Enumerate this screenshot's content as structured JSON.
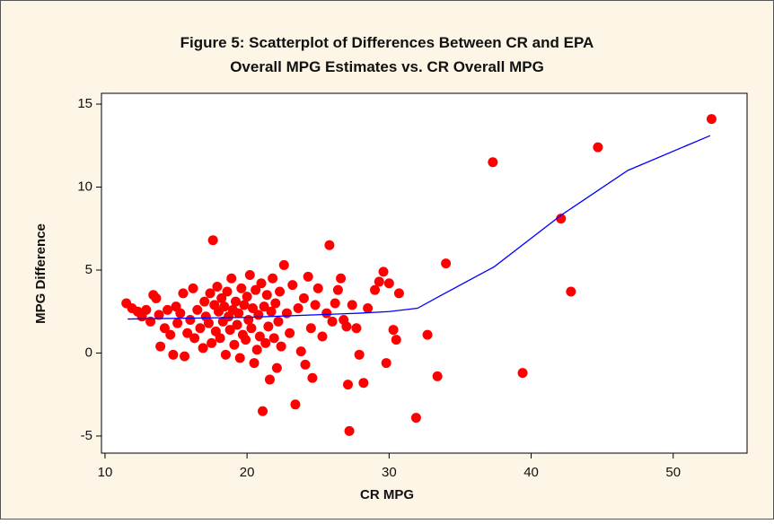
{
  "chart_data": {
    "type": "scatter",
    "title": [
      "Figure 5: Scatterplot of Differences Between CR and EPA",
      "Overall MPG Estimates vs. CR Overall MPG"
    ],
    "x_label": "CR MPG",
    "y_label": "MPG Difference",
    "xlim": [
      9.75,
      55.2
    ],
    "ylim": [
      -6.03,
      15.65
    ],
    "xticks": [
      10,
      20,
      30,
      40,
      50
    ],
    "yticks": [
      -5,
      0,
      5,
      10,
      15
    ],
    "series": [
      {
        "type": "scatter",
        "color": "#ff0000",
        "x": [
          11.5,
          11.9,
          12.3,
          12.6,
          12.9,
          13.2,
          13.4,
          13.6,
          13.8,
          13.9,
          14.2,
          14.4,
          14.6,
          14.8,
          15.0,
          15.1,
          15.3,
          15.5,
          15.6,
          15.8,
          16.0,
          16.2,
          16.3,
          16.5,
          16.7,
          16.9,
          17.0,
          17.1,
          17.3,
          17.4,
          17.5,
          17.6,
          17.7,
          17.8,
          17.9,
          18.0,
          18.1,
          18.2,
          18.3,
          18.4,
          18.5,
          18.6,
          18.7,
          18.8,
          18.9,
          19.0,
          19.1,
          19.2,
          19.3,
          19.4,
          19.5,
          19.6,
          19.7,
          19.8,
          19.9,
          20.0,
          20.1,
          20.2,
          20.3,
          20.4,
          20.5,
          20.6,
          20.7,
          20.8,
          20.9,
          21.0,
          21.1,
          21.2,
          21.3,
          21.4,
          21.5,
          21.6,
          21.7,
          21.8,
          21.9,
          22.0,
          22.1,
          22.2,
          22.3,
          22.4,
          22.6,
          22.8,
          23.0,
          23.2,
          23.4,
          23.6,
          23.8,
          24.0,
          24.1,
          24.3,
          24.5,
          24.6,
          24.8,
          25.0,
          25.3,
          25.6,
          25.8,
          26.0,
          26.2,
          26.4,
          26.6,
          26.8,
          27.0,
          27.1,
          27.2,
          27.4,
          27.7,
          27.9,
          28.2,
          28.5,
          29.0,
          29.3,
          29.6,
          29.8,
          30.0,
          30.3,
          30.5,
          30.7,
          31.9,
          32.7,
          33.4,
          34.0,
          37.3,
          39.4,
          42.1,
          42.8,
          44.7,
          52.7
        ],
        "values": [
          3.0,
          2.7,
          2.5,
          2.2,
          2.6,
          1.9,
          3.5,
          3.3,
          2.3,
          0.4,
          1.5,
          2.6,
          1.1,
          -0.1,
          2.8,
          1.8,
          2.4,
          3.6,
          -0.2,
          1.2,
          2.0,
          3.9,
          0.9,
          2.6,
          1.5,
          0.3,
          3.1,
          2.2,
          1.8,
          3.6,
          0.6,
          6.8,
          2.9,
          1.3,
          4.0,
          2.5,
          0.9,
          3.3,
          1.9,
          2.8,
          -0.1,
          3.7,
          2.2,
          1.4,
          4.5,
          2.6,
          0.5,
          3.1,
          1.7,
          2.4,
          -0.3,
          3.9,
          1.1,
          2.9,
          0.8,
          3.4,
          2.0,
          4.7,
          1.5,
          2.7,
          -0.6,
          3.8,
          0.2,
          2.3,
          1.0,
          4.2,
          -3.5,
          2.8,
          0.6,
          3.5,
          1.6,
          -1.6,
          2.5,
          4.5,
          0.9,
          3.0,
          -0.9,
          1.9,
          3.7,
          0.4,
          5.3,
          2.4,
          1.2,
          4.1,
          -3.1,
          2.7,
          0.1,
          3.3,
          -0.7,
          4.6,
          1.5,
          -1.5,
          2.9,
          3.9,
          1.0,
          2.4,
          6.5,
          1.9,
          3.0,
          3.8,
          4.5,
          2.0,
          1.6,
          -1.9,
          -4.7,
          2.9,
          1.5,
          -0.1,
          -1.8,
          2.7,
          3.8,
          4.3,
          4.9,
          -0.6,
          4.2,
          1.4,
          0.8,
          3.6,
          -3.9,
          1.1,
          -1.4,
          5.4,
          11.5,
          -1.2,
          8.1,
          3.7,
          12.4,
          14.1
        ]
      },
      {
        "type": "line",
        "color": "#0000ff",
        "x": [
          11.6,
          20.0,
          27.9,
          30.0,
          32.0,
          33.6,
          37.4,
          42.1,
          46.8,
          52.6
        ],
        "values": [
          2.05,
          2.15,
          2.4,
          2.5,
          2.7,
          3.45,
          5.2,
          8.3,
          11.0,
          13.1
        ]
      }
    ]
  }
}
